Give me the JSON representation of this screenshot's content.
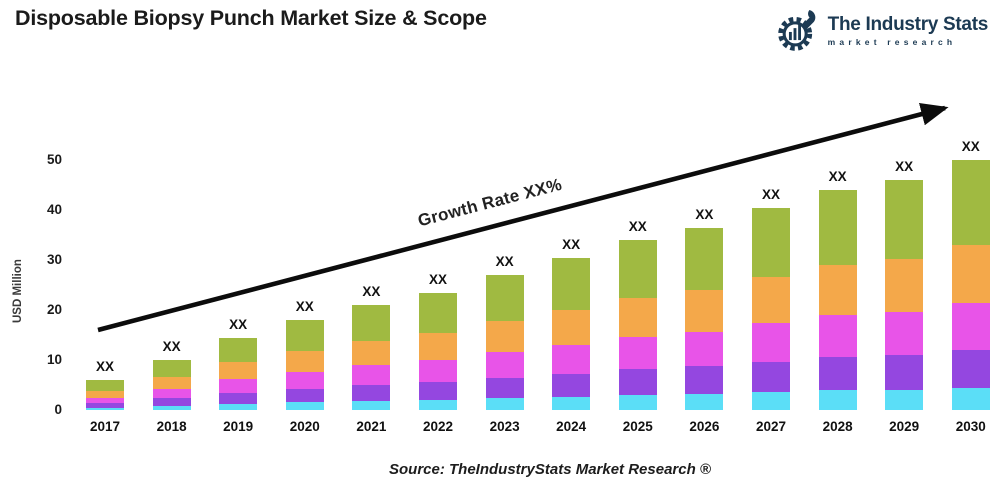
{
  "title": "Disposable Biopsy Punch Market Size & Scope",
  "logo": {
    "name": "The Industry Stats",
    "subtitle": "market research",
    "color": "#1c3a53"
  },
  "chart_data": {
    "type": "bar",
    "stacked": true,
    "title": "Disposable Biopsy Punch Market Size & Scope",
    "ylabel": "USD Million",
    "xlabel": "",
    "ylim": [
      0,
      50
    ],
    "yticks": [
      0,
      10,
      20,
      30,
      40,
      50
    ],
    "grid": false,
    "legend": false,
    "bar_value_label": "XX",
    "annotation": "Growth Rate XX%",
    "categories": [
      "2017",
      "2018",
      "2019",
      "2020",
      "2021",
      "2022",
      "2023",
      "2024",
      "2025",
      "2026",
      "2027",
      "2028",
      "2029",
      "2030"
    ],
    "series_order": "bottom-to-top",
    "series": [
      {
        "name": "cyan-segment",
        "color": "#5bdef7",
        "values": [
          0.5,
          0.9,
          1.3,
          1.6,
          1.9,
          2.1,
          2.4,
          2.7,
          3.1,
          3.3,
          3.6,
          4.0,
          4.1,
          4.5
        ]
      },
      {
        "name": "purple-segment",
        "color": "#9447e0",
        "values": [
          0.9,
          1.5,
          2.2,
          2.7,
          3.2,
          3.5,
          4.1,
          4.6,
          5.1,
          5.5,
          6.1,
          6.6,
          6.9,
          7.5
        ]
      },
      {
        "name": "magenta-segment",
        "color": "#e854e8",
        "values": [
          1.1,
          1.9,
          2.8,
          3.4,
          4.0,
          4.5,
          5.1,
          5.8,
          6.5,
          6.9,
          7.7,
          8.4,
          8.7,
          9.5
        ]
      },
      {
        "name": "orange-segment",
        "color": "#f4a84a",
        "values": [
          1.4,
          2.3,
          3.3,
          4.1,
          4.8,
          5.4,
          6.2,
          7.0,
          7.8,
          8.4,
          9.3,
          10.1,
          10.6,
          11.5
        ]
      },
      {
        "name": "green-segment",
        "color": "#a0ba41",
        "values": [
          2.1,
          3.4,
          4.9,
          6.2,
          7.1,
          8.0,
          9.2,
          10.4,
          11.6,
          12.4,
          13.8,
          15.0,
          15.7,
          17.0
        ]
      }
    ],
    "totals_usd_million": [
      6.0,
      10.0,
      14.5,
      18.0,
      21.0,
      23.5,
      27.0,
      30.5,
      34.1,
      36.5,
      40.5,
      44.1,
      46.0,
      50.0
    ]
  },
  "source": "Source: TheIndustryStats Market Research ®"
}
